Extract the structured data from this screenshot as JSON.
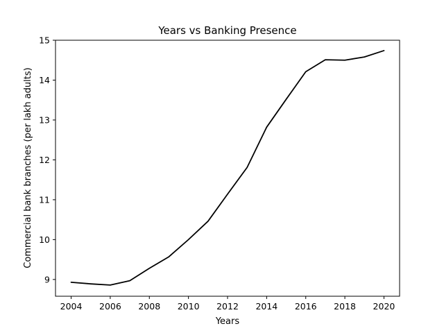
{
  "chart_data": {
    "type": "line",
    "title": "Years vs Banking Presence",
    "xlabel": "Years",
    "ylabel": "Commercial bank branches (per lakh adults)",
    "xlim": [
      2003.2,
      2020.8
    ],
    "ylim": [
      8.58,
      15.0
    ],
    "xticks": [
      2004,
      2006,
      2008,
      2010,
      2012,
      2014,
      2016,
      2018,
      2020
    ],
    "xtick_labels": [
      "2004",
      "2006",
      "2008",
      "2010",
      "2012",
      "2014",
      "2016",
      "2018",
      "2020"
    ],
    "yticks": [
      9,
      10,
      11,
      12,
      13,
      14,
      15
    ],
    "ytick_labels": [
      "9",
      "10",
      "11",
      "12",
      "13",
      "14",
      "15"
    ],
    "grid": false,
    "series": [
      {
        "color": "#000000",
        "x": [
          2004,
          2005,
          2006,
          2007,
          2008,
          2009,
          2010,
          2011,
          2012,
          2013,
          2014,
          2015,
          2016,
          2017,
          2018,
          2019,
          2020
        ],
        "y": [
          8.93,
          8.89,
          8.86,
          8.97,
          9.28,
          9.57,
          10.0,
          10.46,
          11.14,
          11.81,
          12.82,
          13.52,
          14.21,
          14.51,
          14.5,
          14.58,
          14.74
        ]
      }
    ]
  }
}
